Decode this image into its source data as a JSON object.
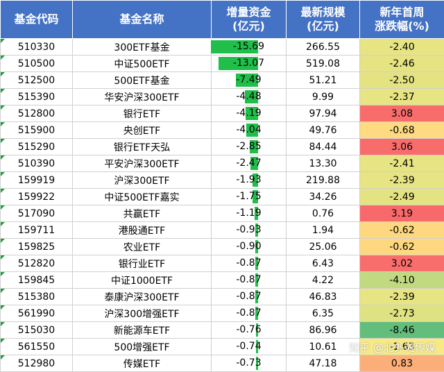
{
  "header": {
    "code": "基金代码",
    "name": "基金名称",
    "flow_l1": "增量资金",
    "flow_l2": "(亿元)",
    "size_l1": "最新规模",
    "size_l2": "(亿元)",
    "chg_l1": "新年首周",
    "chg_l2": "涨跌幅(%)"
  },
  "colors": {
    "header_bg": "#4472c4",
    "bar": "#1fbf4a",
    "scale_low": "#63be7b",
    "scale_mid": "#ffeb84",
    "scale_high": "#f8696b"
  },
  "rows": [
    {
      "code": "510330",
      "name": "300ETF基金",
      "flow": "-15.69",
      "size": "266.55",
      "chg": "-2.40"
    },
    {
      "code": "510500",
      "name": "中证500ETF",
      "flow": "-13.07",
      "size": "519.08",
      "chg": "-2.46"
    },
    {
      "code": "512500",
      "name": "500ETF基金",
      "flow": "-7.49",
      "size": "51.21",
      "chg": "-2.50"
    },
    {
      "code": "515390",
      "name": "华安沪深300ETF",
      "flow": "-4.48",
      "size": "9.99",
      "chg": "-2.37"
    },
    {
      "code": "512800",
      "name": "银行ETF",
      "flow": "-4.19",
      "size": "97.94",
      "chg": "3.08"
    },
    {
      "code": "515900",
      "name": "央创ETF",
      "flow": "-4.04",
      "size": "49.76",
      "chg": "-0.68"
    },
    {
      "code": "515290",
      "name": "银行ETF天弘",
      "flow": "-2.85",
      "size": "84.44",
      "chg": "3.06"
    },
    {
      "code": "510390",
      "name": "平安沪深300ETF",
      "flow": "-2.47",
      "size": "13.30",
      "chg": "-2.41"
    },
    {
      "code": "159919",
      "name": "沪深300ETF",
      "flow": "-1.93",
      "size": "219.88",
      "chg": "-2.39"
    },
    {
      "code": "159922",
      "name": "中证500ETF嘉实",
      "flow": "-1.75",
      "size": "34.26",
      "chg": "-2.49"
    },
    {
      "code": "517090",
      "name": "共赢ETF",
      "flow": "-1.19",
      "size": "0.76",
      "chg": "3.19"
    },
    {
      "code": "159711",
      "name": "港股通ETF",
      "flow": "-0.93",
      "size": "1.94",
      "chg": "-0.62"
    },
    {
      "code": "159825",
      "name": "农业ETF",
      "flow": "-0.90",
      "size": "25.06",
      "chg": "-0.62"
    },
    {
      "code": "512820",
      "name": "银行业ETF",
      "flow": "-0.87",
      "size": "6.43",
      "chg": "3.02"
    },
    {
      "code": "159845",
      "name": "中证1000ETF",
      "flow": "-0.87",
      "size": "4.22",
      "chg": "-4.10"
    },
    {
      "code": "515380",
      "name": "泰康沪深300ETF",
      "flow": "-0.87",
      "size": "46.83",
      "chg": "-2.39"
    },
    {
      "code": "561990",
      "name": "沪深300增强ETF",
      "flow": "-0.87",
      "size": "6.35",
      "chg": "-2.73"
    },
    {
      "code": "515030",
      "name": "新能源车ETF",
      "flow": "-0.76",
      "size": "86.96",
      "chg": "-8.46"
    },
    {
      "code": "561550",
      "name": "500增强ETF",
      "flow": "-0.74",
      "size": "10.61",
      "chg": "-1.63"
    },
    {
      "code": "512980",
      "name": "传媒ETF",
      "flow": "-0.73",
      "size": "47.18",
      "chg": "0.83"
    }
  ],
  "watermark": "知乎 @北外滩传媒"
}
